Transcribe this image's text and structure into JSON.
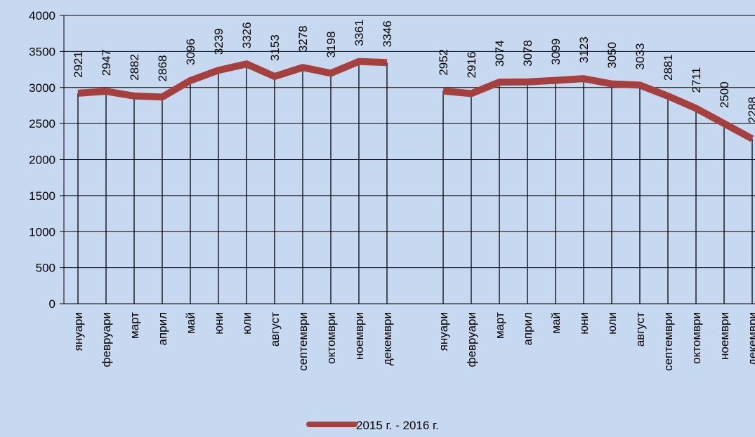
{
  "chart_data": {
    "type": "line",
    "categories": [
      "януари",
      "февруари",
      "март",
      "април",
      "май",
      "юни",
      "юли",
      "август",
      "септември",
      "октомври",
      "ноември",
      "декември",
      null,
      "януари",
      "февруари",
      "март",
      "април",
      "май",
      "юни",
      "юли",
      "август",
      "септември",
      "октомври",
      "ноември",
      "декември"
    ],
    "series": [
      {
        "name": "2015 г. - 2016 г.",
        "color": "#a5403e",
        "values": [
          2921,
          2947,
          2882,
          2868,
          3096,
          3239,
          3326,
          3153,
          3278,
          3198,
          3361,
          3346,
          null,
          2952,
          2916,
          3074,
          3078,
          3099,
          3123,
          3050,
          3033,
          2881,
          2711,
          2500,
          2288
        ]
      }
    ],
    "ylim": [
      0,
      4000
    ],
    "yticks": [
      0,
      500,
      1000,
      1500,
      2000,
      2500,
      3000,
      3500,
      4000
    ],
    "grid": true,
    "drop_lines": true,
    "legend": "bottom"
  }
}
